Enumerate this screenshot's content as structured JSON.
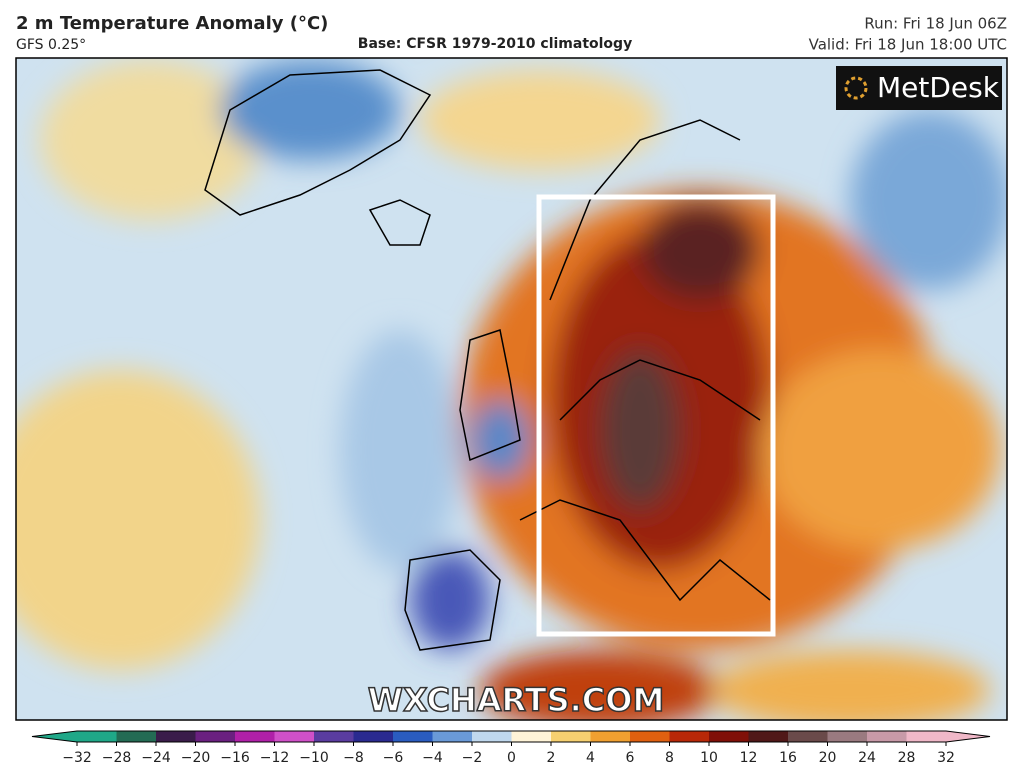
{
  "header": {
    "title": "2 m Temperature Anomaly (°C)",
    "model": "GFS 0.25°",
    "base": "Base: CFSR 1979-2010 climatology",
    "run": "Run: Fri 18 Jun 06Z",
    "valid": "Valid: Fri 18 Jun 18:00 UTC"
  },
  "logo": "MetDesk",
  "watermark": "WXCHARTS.COM",
  "colorbar": {
    "ticks": [
      {
        "value": -32,
        "label": "−32"
      },
      {
        "value": -28,
        "label": "−28"
      },
      {
        "value": -24,
        "label": "−24"
      },
      {
        "value": -20,
        "label": "−20"
      },
      {
        "value": -16,
        "label": "−16"
      },
      {
        "value": -12,
        "label": "−12"
      },
      {
        "value": -10,
        "label": "−10"
      },
      {
        "value": -8,
        "label": "−8"
      },
      {
        "value": -6,
        "label": "−6"
      },
      {
        "value": -4,
        "label": "−4"
      },
      {
        "value": -2,
        "label": "−2"
      },
      0,
      2,
      4,
      6,
      8,
      10,
      12,
      16,
      20,
      24,
      28,
      32
    ],
    "colors": [
      "#1fa888",
      "#236b54",
      "#3a1c4a",
      "#6a2080",
      "#b020a8",
      "#d050c8",
      "#5a3ca0",
      "#2a2a90",
      "#2a5cc0",
      "#6a9ad8",
      "#c0d8ee",
      "#fff4d8",
      "#f6d070",
      "#f0a030",
      "#e06010",
      "#b82808",
      "#801008",
      "#501818",
      "#6a4a4a",
      "#9a7a80",
      "#c89aa8",
      "#f0b8c8"
    ]
  }
}
